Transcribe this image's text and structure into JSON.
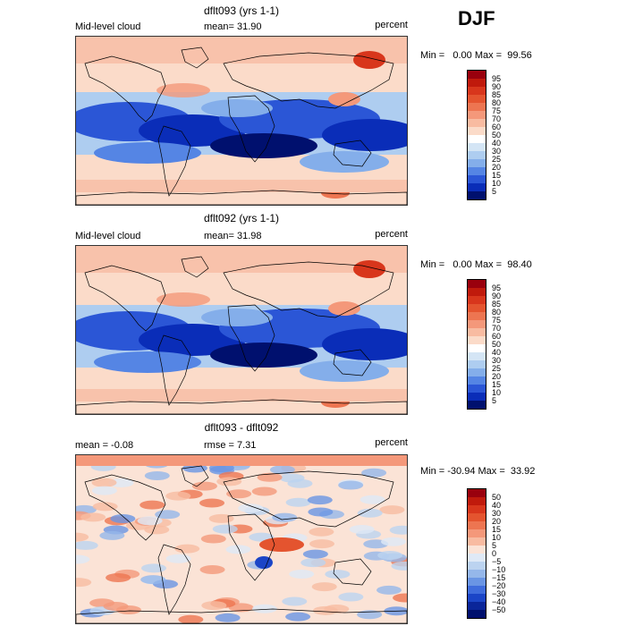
{
  "season": "DJF",
  "panels": [
    {
      "title": "dflt093 (yrs 1-1)",
      "left_label": "Mid-level cloud",
      "center_label": "mean=  31.90",
      "units": "percent",
      "min_max": "Min =   0.00 Max =  99.56",
      "colorbar": {
        "labels": [
          "95",
          "90",
          "85",
          "80",
          "75",
          "70",
          "60",
          "50",
          "40",
          "30",
          "25",
          "20",
          "15",
          "10",
          "5"
        ],
        "colors": [
          "#99000d",
          "#c01a0c",
          "#d8361c",
          "#e4542f",
          "#ed7551",
          "#f4987a",
          "#f8bba1",
          "#fbdbc9",
          "#ffffff",
          "#d4e5f5",
          "#aecdf0",
          "#84aeea",
          "#5585e4",
          "#2b56d6",
          "#0a2db8",
          "#00106e"
        ]
      }
    },
    {
      "title": "dflt092 (yrs 1-1)",
      "left_label": "Mid-level cloud",
      "center_label": "mean=  31.98",
      "units": "percent",
      "min_max": "Min =   0.00 Max =  98.40",
      "colorbar": {
        "labels": [
          "95",
          "90",
          "85",
          "80",
          "75",
          "70",
          "60",
          "50",
          "40",
          "30",
          "25",
          "20",
          "15",
          "10",
          "5"
        ],
        "colors": [
          "#99000d",
          "#c01a0c",
          "#d8361c",
          "#e4542f",
          "#ed7551",
          "#f4987a",
          "#f8bba1",
          "#fbdbc9",
          "#ffffff",
          "#d4e5f5",
          "#aecdf0",
          "#84aeea",
          "#5585e4",
          "#2b56d6",
          "#0a2db8",
          "#00106e"
        ]
      }
    },
    {
      "title": "dflt093 - dflt092",
      "left_label": "mean =  -0.08",
      "center_label": "rmse =   7.31",
      "units": "percent",
      "min_max": "Min = -30.94 Max =  33.92",
      "colorbar": {
        "labels": [
          "50",
          "40",
          "30",
          "20",
          "15",
          "10",
          "5",
          "0",
          "−5",
          "−10",
          "−15",
          "−20",
          "−30",
          "−40",
          "−50"
        ],
        "colors": [
          "#99000d",
          "#c01a0c",
          "#d8361c",
          "#e4542f",
          "#ed7551",
          "#f4987a",
          "#f8bba1",
          "#fbe3d6",
          "#dfe9f6",
          "#bcd3f0",
          "#95b7ea",
          "#6a95e4",
          "#3f6cdc",
          "#1b45c7",
          "#0a2599",
          "#00106e"
        ]
      }
    }
  ]
}
